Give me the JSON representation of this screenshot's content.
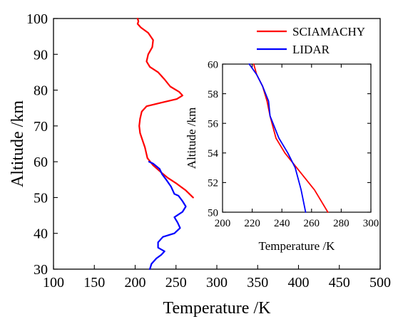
{
  "chart_data": [
    {
      "type": "line",
      "xlabel": "Temperature /K",
      "ylabel": "Altitude /km",
      "xlim": [
        100,
        500
      ],
      "ylim": [
        30,
        100
      ],
      "xticks": [
        100,
        150,
        200,
        250,
        300,
        350,
        400,
        450,
        500
      ],
      "yticks": [
        30,
        40,
        50,
        60,
        70,
        80,
        90,
        100
      ],
      "grid": false,
      "legend": "top-right",
      "series": [
        {
          "name": "SCIAMACHY",
          "color": "#ff0000",
          "points": [
            [
              271,
              50
            ],
            [
              262,
              52
            ],
            [
              250,
              54
            ],
            [
              240,
              55.5
            ],
            [
              232,
              57
            ],
            [
              222,
              59
            ],
            [
              215,
              61
            ],
            [
              212,
              64
            ],
            [
              209,
              66
            ],
            [
              206,
              68
            ],
            [
              205,
              70
            ],
            [
              206,
              72
            ],
            [
              208,
              74
            ],
            [
              214,
              75.5
            ],
            [
              232,
              76.5
            ],
            [
              251,
              77.5
            ],
            [
              258,
              78.5
            ],
            [
              254,
              79.5
            ],
            [
              243,
              81
            ],
            [
              236,
              83
            ],
            [
              228,
              85
            ],
            [
              218,
              86.5
            ],
            [
              214,
              88
            ],
            [
              216,
              90
            ],
            [
              221,
              92
            ],
            [
              222,
              94
            ],
            [
              216,
              96
            ],
            [
              207,
              97.5
            ],
            [
              203,
              98.5
            ],
            [
              204,
              99.2
            ],
            [
              203,
              100
            ]
          ]
        },
        {
          "name": "LIDAR",
          "color": "#0000ff",
          "points": [
            [
              217,
              60
            ],
            [
              222,
              59.5
            ],
            [
              230,
              58
            ],
            [
              233,
              56.5
            ],
            [
              238,
              55
            ],
            [
              244,
              53
            ],
            [
              248,
              51
            ],
            [
              253,
              50.5
            ],
            [
              258,
              49
            ],
            [
              262,
              47.5
            ],
            [
              258,
              46
            ],
            [
              248,
              44.5
            ],
            [
              252,
              43
            ],
            [
              255,
              41.5
            ],
            [
              248,
              40
            ],
            [
              234,
              39
            ],
            [
              228,
              37.5
            ],
            [
              228,
              36
            ],
            [
              236,
              35
            ],
            [
              232,
              34
            ],
            [
              226,
              33
            ],
            [
              220,
              31.5
            ],
            [
              218,
              30
            ]
          ]
        }
      ]
    },
    {
      "type": "line",
      "xlabel": "Temperature /K",
      "ylabel": "Altitude /km",
      "xlim": [
        200,
        300
      ],
      "ylim": [
        50,
        60
      ],
      "xticks": [
        200,
        220,
        240,
        260,
        280,
        300
      ],
      "yticks": [
        50,
        52,
        54,
        56,
        58,
        60
      ],
      "grid": false,
      "series": [
        {
          "name": "SCIAMACHY",
          "color": "#ff0000",
          "points": [
            [
              271,
              50
            ],
            [
              262,
              51.5
            ],
            [
              250,
              53
            ],
            [
              242,
              54
            ],
            [
              236,
              55
            ],
            [
              232,
              56.5
            ],
            [
              230,
              57.5
            ],
            [
              227,
              58.5
            ],
            [
              223,
              59.3
            ],
            [
              221,
              60
            ]
          ]
        },
        {
          "name": "LIDAR",
          "color": "#0000ff",
          "points": [
            [
              256,
              50
            ],
            [
              253,
              51.5
            ],
            [
              249,
              53
            ],
            [
              244,
              54
            ],
            [
              238,
              55
            ],
            [
              232,
              56.5
            ],
            [
              231,
              57.5
            ],
            [
              227,
              58.5
            ],
            [
              223,
              59.3
            ],
            [
              218,
              60
            ]
          ]
        }
      ]
    }
  ]
}
